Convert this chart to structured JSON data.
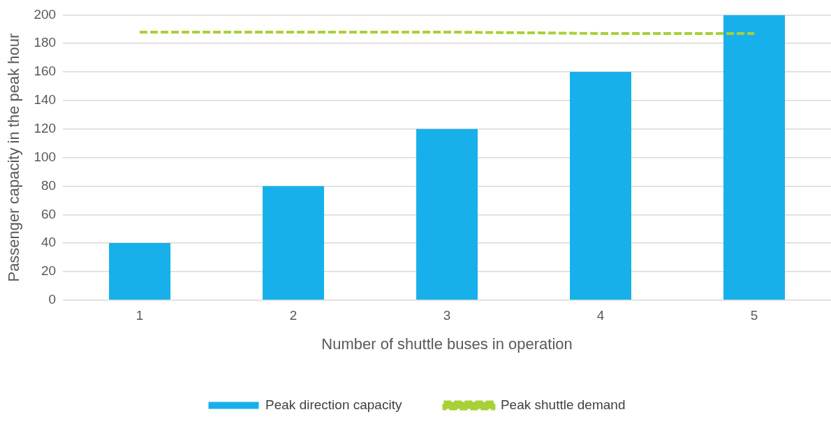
{
  "chart_data": {
    "type": "bar",
    "xlabel": "Number of shuttle buses in operation",
    "ylabel": "Passenger capacity in the peak hour",
    "categories": [
      "1",
      "2",
      "3",
      "4",
      "5"
    ],
    "series": [
      {
        "name": "Peak direction capacity",
        "color": "#17b0ea",
        "values": [
          40,
          80,
          120,
          160,
          200
        ]
      },
      {
        "name": "Peak shuttle demand",
        "type": "line",
        "color": "#a8d038",
        "line_style": "dashed",
        "marker": "none",
        "values": [
          188,
          188,
          188,
          187,
          187
        ]
      }
    ],
    "ylim": [
      0,
      200
    ],
    "yticks": [
      0,
      20,
      40,
      60,
      80,
      100,
      120,
      140,
      160,
      180,
      200
    ],
    "grid": "y",
    "legend": "bottom"
  }
}
